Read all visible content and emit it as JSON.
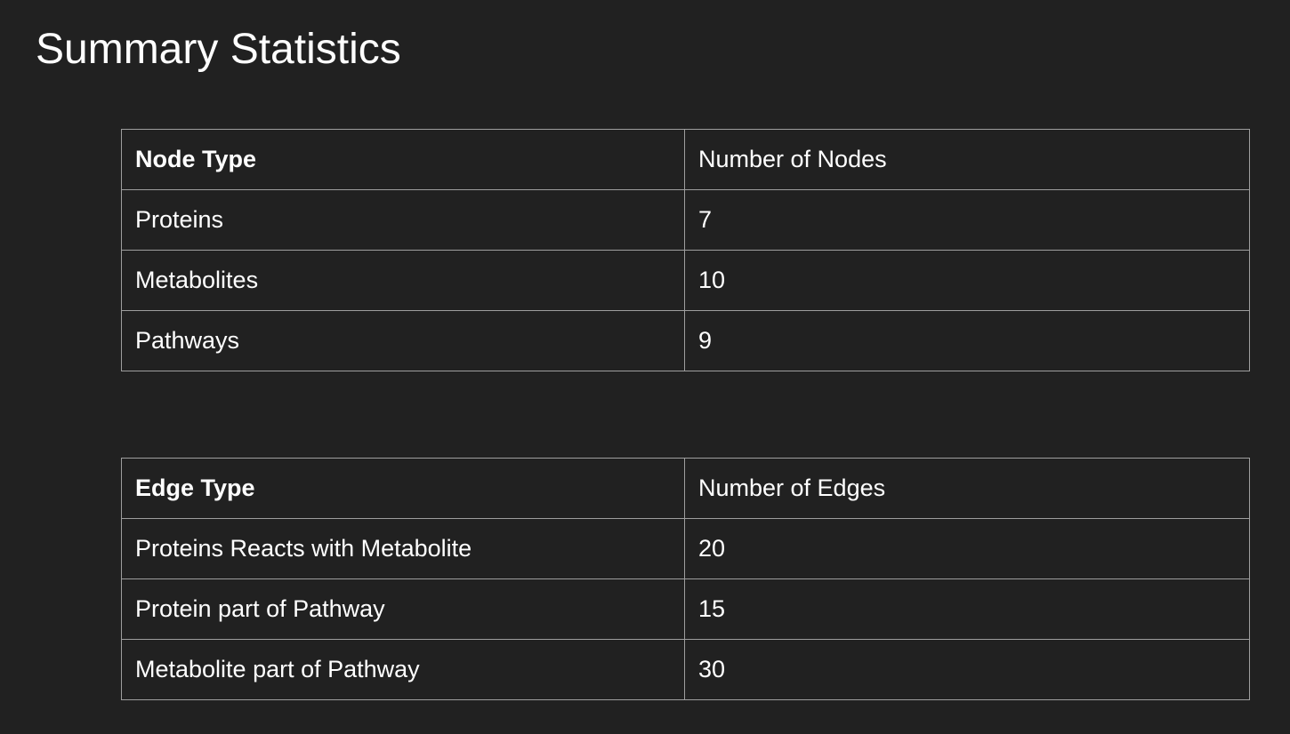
{
  "slide": {
    "title": "Summary Statistics"
  },
  "node_table": {
    "header": {
      "type": "Node Type",
      "count": "Number of Nodes"
    },
    "rows": [
      {
        "type": "Proteins",
        "count": "7"
      },
      {
        "type": "Metabolites",
        "count": "10"
      },
      {
        "type": "Pathways",
        "count": "9"
      }
    ]
  },
  "edge_table": {
    "header": {
      "type": "Edge Type",
      "count": "Number of Edges"
    },
    "rows": [
      {
        "type": "Proteins Reacts with Metabolite",
        "count": "20"
      },
      {
        "type": "Protein part of Pathway",
        "count": "15"
      },
      {
        "type": "Metabolite part of Pathway",
        "count": "30"
      }
    ]
  },
  "colors": {
    "background": "#212121",
    "text": "#ffffff",
    "border": "#9e9e9e"
  }
}
